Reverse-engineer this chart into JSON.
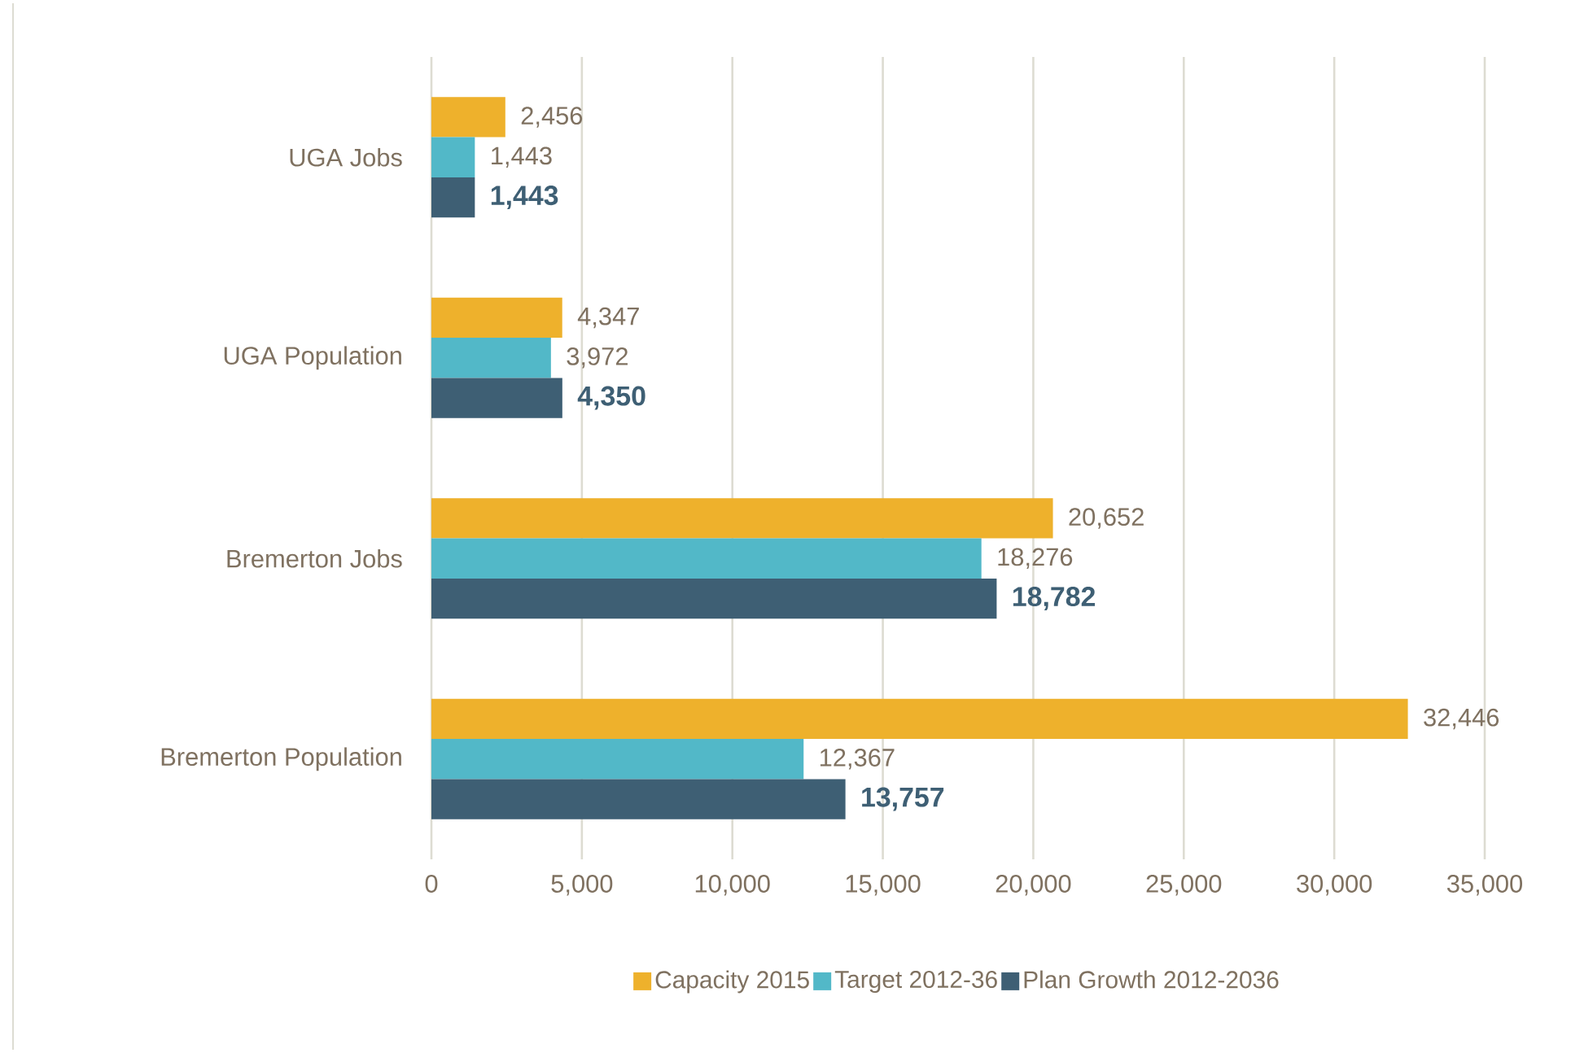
{
  "chart_data": {
    "type": "bar",
    "orientation": "horizontal",
    "categories": [
      "UGA Jobs",
      "UGA Population",
      "Bremerton Jobs",
      "Bremerton Population"
    ],
    "series": [
      {
        "name": "Capacity 2015",
        "color": "#EEB12C",
        "values": [
          2456,
          4347,
          20652,
          32446
        ],
        "value_labels": [
          "2,456",
          "4,347",
          "20,652",
          "32,446"
        ]
      },
      {
        "name": "Target 2012-36",
        "color": "#52B8C8",
        "values": [
          1443,
          3972,
          18276,
          12367
        ],
        "value_labels": [
          "1,443",
          "3,972",
          "18,276",
          "12,367"
        ]
      },
      {
        "name": "Plan Growth 2012-2036",
        "color": "#3E5F74",
        "values": [
          1443,
          4350,
          18782,
          13757
        ],
        "value_labels": [
          "1,443",
          "4,350",
          "18,782",
          "13,757"
        ]
      }
    ],
    "xlim": [
      0,
      35000
    ],
    "xticks": [
      0,
      {
        "value": 5000,
        "label": "5,000"
      },
      {
        "value": 10000,
        "label": "10,000"
      },
      {
        "value": 15000,
        "label": "15,000"
      },
      {
        "value": 20000,
        "label": "20,000"
      },
      {
        "value": 25000,
        "label": "25,000"
      },
      {
        "value": 30000,
        "label": "30,000"
      },
      {
        "value": 35000,
        "label": "35,000"
      }
    ],
    "grid": "x",
    "legend": "bottom"
  }
}
